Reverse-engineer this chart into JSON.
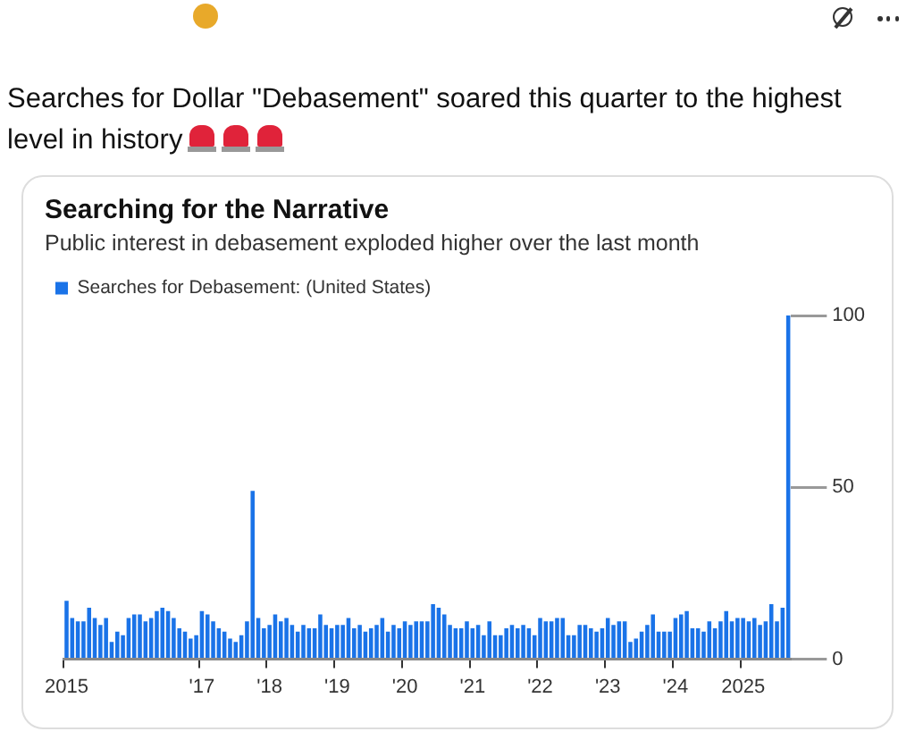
{
  "chart_data": {
    "type": "bar",
    "title": "Searching for the Narrative",
    "subtitle": "Public interest in debasement exploded higher over the last month",
    "annotations": [
      "Searches for Dollar \"Debasement\" soared this quarter to the highest level in history"
    ],
    "categories": [
      "2015",
      null,
      null,
      null,
      null,
      null,
      null,
      null,
      null,
      null,
      null,
      null,
      null,
      null,
      null,
      null,
      null,
      null,
      null,
      null,
      null,
      null,
      null,
      null,
      "'17",
      null,
      null,
      null,
      null,
      null,
      null,
      null,
      null,
      null,
      null,
      null,
      "'18",
      null,
      null,
      null,
      null,
      null,
      null,
      null,
      null,
      null,
      null,
      null,
      "'19",
      null,
      null,
      null,
      null,
      null,
      null,
      null,
      null,
      null,
      null,
      null,
      "'20",
      null,
      null,
      null,
      null,
      null,
      null,
      null,
      null,
      null,
      null,
      null,
      "'21",
      null,
      null,
      null,
      null,
      null,
      null,
      null,
      null,
      null,
      null,
      null,
      "'22",
      null,
      null,
      null,
      null,
      null,
      null,
      null,
      null,
      null,
      null,
      null,
      "'23",
      null,
      null,
      null,
      null,
      null,
      null,
      null,
      null,
      null,
      null,
      null,
      "'24",
      null,
      null,
      null,
      null,
      null,
      null,
      null,
      null,
      null,
      null,
      null,
      "2025",
      null,
      null,
      null,
      null,
      null,
      null,
      null,
      null
    ],
    "series": [
      {
        "name": "Searches for Debasement: (United States)",
        "color": "#1a73e8",
        "values": [
          17,
          12,
          11,
          11,
          15,
          12,
          10,
          12,
          5,
          8,
          7,
          12,
          13,
          13,
          11,
          12,
          14,
          15,
          14,
          12,
          9,
          8,
          6,
          7,
          14,
          13,
          11,
          9,
          8,
          6,
          5,
          7,
          11,
          49,
          12,
          9,
          10,
          13,
          11,
          12,
          10,
          8,
          10,
          9,
          9,
          13,
          10,
          9,
          10,
          10,
          12,
          9,
          10,
          8,
          9,
          10,
          12,
          8,
          10,
          9,
          11,
          10,
          11,
          11,
          11,
          16,
          15,
          13,
          10,
          9,
          9,
          11,
          9,
          10,
          7,
          11,
          7,
          7,
          9,
          10,
          9,
          10,
          9,
          7,
          12,
          11,
          11,
          12,
          12,
          7,
          7,
          10,
          10,
          9,
          8,
          9,
          12,
          10,
          11,
          11,
          5,
          6,
          8,
          10,
          13,
          8,
          8,
          8,
          12,
          13,
          14,
          9,
          9,
          8,
          11,
          9,
          11,
          14,
          11,
          12,
          12,
          11,
          12,
          10,
          11,
          16,
          11,
          15,
          100
        ]
      }
    ],
    "ylim": [
      0,
      100
    ],
    "yticks": [
      0,
      50,
      100
    ],
    "legend": "top left"
  }
}
